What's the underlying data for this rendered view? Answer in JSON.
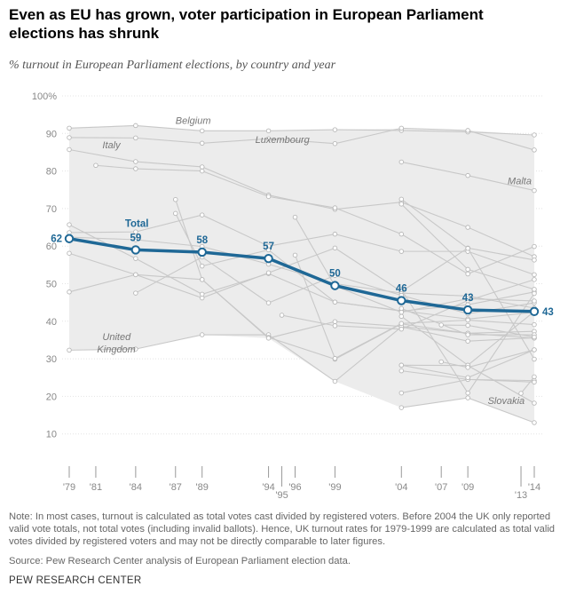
{
  "title": "Even as EU has grown, voter participation in European Parliament elections has shrunk",
  "subtitle": "% turnout in European Parliament elections, by country and year",
  "note": "Note: In most cases, turnout is calculated as total votes cast divided by registered voters. Before 2004 the UK only reported valid vote totals, not total votes (including invalid ballots). Hence, UK turnout rates for 1979-1999 are calculated as total valid votes divided by registered voters and may not be directly comparable to later figures.",
  "source": "Source: Pew Research Center analysis of European Parliament election data.",
  "brand": "PEW RESEARCH CENTER",
  "colors": {
    "total": "#1f6896",
    "country": "#c8c8c8",
    "band": "#ececec"
  },
  "chart_data": {
    "type": "line",
    "y_ticks": [
      "100%",
      "90",
      "80",
      "70",
      "60",
      "50",
      "40",
      "30",
      "20",
      "10"
    ],
    "ylim": [
      0,
      100
    ],
    "x_ticks": [
      {
        "year": 1979,
        "label": "'79",
        "row": 0
      },
      {
        "year": 1981,
        "label": "'81",
        "row": 0
      },
      {
        "year": 1984,
        "label": "'84",
        "row": 0
      },
      {
        "year": 1987,
        "label": "'87",
        "row": 0
      },
      {
        "year": 1989,
        "label": "'89",
        "row": 0
      },
      {
        "year": 1994,
        "label": "'94",
        "row": 0
      },
      {
        "year": 1995,
        "label": "'95",
        "row": 1
      },
      {
        "year": 1996,
        "label": "'96",
        "row": 0
      },
      {
        "year": 1999,
        "label": "'99",
        "row": 0
      },
      {
        "year": 2004,
        "label": "'04",
        "row": 0
      },
      {
        "year": 2007,
        "label": "'07",
        "row": 0
      },
      {
        "year": 2009,
        "label": "'09",
        "row": 0
      },
      {
        "year": 2013,
        "label": "'13",
        "row": 1
      },
      {
        "year": 2014,
        "label": "'14",
        "row": 0
      }
    ],
    "band": {
      "upper": [
        [
          1979,
          91.6
        ],
        [
          1984,
          92.2
        ],
        [
          1989,
          90.7
        ],
        [
          1994,
          90.7
        ],
        [
          1999,
          91
        ],
        [
          2004,
          91.3
        ],
        [
          2009,
          90.8
        ],
        [
          2014,
          89.6
        ]
      ],
      "lower": [
        [
          1979,
          32.3
        ],
        [
          1984,
          32.6
        ],
        [
          1989,
          36.4
        ],
        [
          1994,
          35.5
        ],
        [
          1999,
          24
        ],
        [
          2004,
          17
        ],
        [
          2009,
          19.6
        ],
        [
          2014,
          13
        ]
      ]
    },
    "series": [
      {
        "name": "Belgium",
        "label_at": [
          1987,
          92.5
        ],
        "points": [
          [
            1979,
            91.4
          ],
          [
            1984,
            92.1
          ],
          [
            1989,
            90.7
          ],
          [
            1994,
            90.7
          ],
          [
            1999,
            91
          ],
          [
            2004,
            90.8
          ],
          [
            2009,
            90.4
          ],
          [
            2014,
            89.6
          ]
        ]
      },
      {
        "name": "Luxembourg",
        "label_at": [
          1993,
          87.5
        ],
        "points": [
          [
            1979,
            88.9
          ],
          [
            1984,
            88.8
          ],
          [
            1989,
            87.4
          ],
          [
            1994,
            88.6
          ],
          [
            1999,
            87.3
          ],
          [
            2004,
            91.4
          ],
          [
            2009,
            90.8
          ],
          [
            2014,
            85.6
          ]
        ]
      },
      {
        "name": "Italy",
        "label_at": [
          1981.5,
          86
        ],
        "points": [
          [
            1979,
            85.7
          ],
          [
            1984,
            82.5
          ],
          [
            1989,
            81.1
          ],
          [
            1994,
            73.6
          ],
          [
            1999,
            69.8
          ],
          [
            2004,
            71.7
          ],
          [
            2009,
            65
          ],
          [
            2014,
            57.2
          ]
        ]
      },
      {
        "name": "Malta",
        "label_at": [
          2012,
          76.5
        ],
        "points": [
          [
            2004,
            82.4
          ],
          [
            2009,
            78.8
          ],
          [
            2014,
            74.8
          ]
        ]
      },
      {
        "name": "United Kingdom",
        "label_at": [
          1981.5,
          35
        ],
        "points": [
          [
            1979,
            32.3
          ],
          [
            1984,
            32.6
          ],
          [
            1989,
            36.4
          ],
          [
            1994,
            36.4
          ],
          [
            1999,
            24
          ],
          [
            2004,
            38.5
          ],
          [
            2009,
            34.7
          ],
          [
            2014,
            35.6
          ]
        ]
      },
      {
        "name": "Slovakia",
        "label_at": [
          2010.5,
          18
        ],
        "points": [
          [
            2004,
            17
          ],
          [
            2009,
            19.6
          ],
          [
            2014,
            13
          ]
        ]
      },
      {
        "name": "",
        "points": [
          [
            1981,
            81.5
          ],
          [
            1984,
            80.6
          ],
          [
            1989,
            80.0
          ],
          [
            1994,
            73.2
          ],
          [
            1999,
            70.2
          ],
          [
            2004,
            63.2
          ],
          [
            2009,
            52.6
          ],
          [
            2014,
            59.9
          ]
        ]
      },
      {
        "name": "",
        "points": [
          [
            1979,
            65.7
          ],
          [
            1984,
            56.7
          ],
          [
            1989,
            47.2
          ],
          [
            1994,
            52.7
          ],
          [
            1999,
            45.1
          ],
          [
            2004,
            42.8
          ],
          [
            2009,
            40.6
          ],
          [
            2014,
            42.4
          ]
        ]
      },
      {
        "name": "",
        "points": [
          [
            1979,
            62.4
          ],
          [
            1984,
            61.7
          ],
          [
            1989,
            59.9
          ],
          [
            1994,
            55.2
          ],
          [
            1999,
            50.0
          ],
          [
            2004,
            47.5
          ],
          [
            2009,
            46.7
          ],
          [
            2014,
            43.5
          ]
        ]
      },
      {
        "name": "",
        "points": [
          [
            1979,
            58.1
          ],
          [
            1984,
            52.4
          ],
          [
            1989,
            51.1
          ],
          [
            1994,
            35.7
          ],
          [
            1999,
            29.9
          ],
          [
            2004,
            39.3
          ],
          [
            2009,
            36.8
          ],
          [
            2014,
            37.3
          ]
        ]
      },
      {
        "name": "",
        "points": [
          [
            1979,
            47.8
          ],
          [
            1984,
            52.4
          ],
          [
            1989,
            46.2
          ],
          [
            1994,
            52.9
          ],
          [
            1999,
            59.5
          ],
          [
            2004,
            47.9
          ],
          [
            2009,
            59.5
          ],
          [
            2014,
            56.3
          ]
        ]
      },
      {
        "name": "",
        "points": [
          [
            1979,
            63.6
          ],
          [
            1984,
            63.8
          ],
          [
            1989,
            68.3
          ],
          [
            1994,
            60.0
          ],
          [
            1999,
            63.2
          ],
          [
            2004,
            58.6
          ],
          [
            2009,
            58.6
          ],
          [
            2014,
            52.4
          ]
        ]
      },
      {
        "name": "",
        "points": [
          [
            1984,
            47.5
          ],
          [
            1989,
            57.1
          ],
          [
            1994,
            44.9
          ],
          [
            1999,
            52.2
          ],
          [
            2004,
            46.9
          ],
          [
            2009,
            42.0
          ],
          [
            2014,
            44.9
          ]
        ]
      },
      {
        "name": "",
        "points": [
          [
            1987,
            72.4
          ],
          [
            1989,
            51.1
          ],
          [
            1994,
            35.5
          ],
          [
            1999,
            39.9
          ],
          [
            2004,
            38.6
          ],
          [
            2009,
            36.8
          ],
          [
            2014,
            35.5
          ]
        ]
      },
      {
        "name": "",
        "points": [
          [
            1987,
            68.7
          ],
          [
            1989,
            54.7
          ],
          [
            1994,
            59.0
          ],
          [
            1999,
            45.1
          ],
          [
            2004,
            42.7
          ],
          [
            2009,
            44.4
          ],
          [
            2014,
            47.8
          ]
        ]
      },
      {
        "name": "",
        "points": [
          [
            1995,
            41.6
          ],
          [
            1999,
            38.8
          ],
          [
            2004,
            37.9
          ],
          [
            2009,
            45.5
          ],
          [
            2014,
            51.1
          ]
        ]
      },
      {
        "name": "",
        "points": [
          [
            1996,
            67.7
          ],
          [
            1999,
            49.4
          ],
          [
            2004,
            42.4
          ],
          [
            2009,
            46.0
          ],
          [
            2014,
            45.4
          ]
        ]
      },
      {
        "name": "",
        "points": [
          [
            1996,
            57.6
          ],
          [
            1999,
            30.1
          ],
          [
            2004,
            39.4
          ],
          [
            2009,
            40.3
          ],
          [
            2014,
            39.1
          ]
        ]
      },
      {
        "name": "",
        "points": [
          [
            2004,
            72.5
          ],
          [
            2009,
            59.4
          ],
          [
            2014,
            29.9
          ]
        ]
      },
      {
        "name": "",
        "points": [
          [
            2004,
            28.3
          ],
          [
            2009,
            28.2
          ],
          [
            2014,
            18.2
          ]
        ]
      },
      {
        "name": "",
        "points": [
          [
            2004,
            26.8
          ],
          [
            2009,
            24.5
          ],
          [
            2014,
            24.2
          ]
        ]
      },
      {
        "name": "",
        "points": [
          [
            2004,
            20.9
          ],
          [
            2009,
            24.5
          ],
          [
            2014,
            23.8
          ]
        ]
      },
      {
        "name": "",
        "points": [
          [
            2004,
            48.4
          ],
          [
            2009,
            20.9
          ],
          [
            2014,
            47.4
          ]
        ]
      },
      {
        "name": "",
        "points": [
          [
            2004,
            41.3
          ],
          [
            2009,
            28.3
          ],
          [
            2014,
            42.6
          ]
        ]
      },
      {
        "name": "",
        "points": [
          [
            2004,
            28.3
          ],
          [
            2009,
            25.0
          ],
          [
            2014,
            32.4
          ]
        ]
      },
      {
        "name": "",
        "points": [
          [
            2004,
            71.2
          ],
          [
            2009,
            53.8
          ],
          [
            2014,
            48.5
          ]
        ]
      },
      {
        "name": "",
        "points": [
          [
            2004,
            43.4
          ],
          [
            2009,
            36.4
          ],
          [
            2014,
            36.4
          ]
        ]
      },
      {
        "name": "",
        "points": [
          [
            2007,
            29.2
          ],
          [
            2009,
            27.7
          ],
          [
            2014,
            32.4
          ]
        ]
      },
      {
        "name": "",
        "points": [
          [
            2007,
            39.0
          ],
          [
            2009,
            38.9
          ],
          [
            2014,
            35.8
          ]
        ]
      },
      {
        "name": "",
        "points": [
          [
            2013,
            20.8
          ],
          [
            2014,
            25.2
          ]
        ]
      }
    ],
    "total": {
      "name": "Total",
      "points": [
        [
          1979,
          62
        ],
        [
          1984,
          59
        ],
        [
          1989,
          58
        ],
        [
          1994,
          57
        ],
        [
          1999,
          50
        ],
        [
          2004,
          46
        ],
        [
          2009,
          43
        ],
        [
          2014,
          43
        ]
      ],
      "labels": [
        "62",
        "59",
        "58",
        "57",
        "50",
        "46",
        "43",
        "43"
      ],
      "display": [
        [
          1979,
          62.0
        ],
        [
          1984,
          59.0
        ],
        [
          1989,
          58.4
        ],
        [
          1994,
          56.7
        ],
        [
          1999,
          49.5
        ],
        [
          2004,
          45.5
        ],
        [
          2009,
          43.0
        ],
        [
          2014,
          42.6
        ]
      ]
    }
  }
}
